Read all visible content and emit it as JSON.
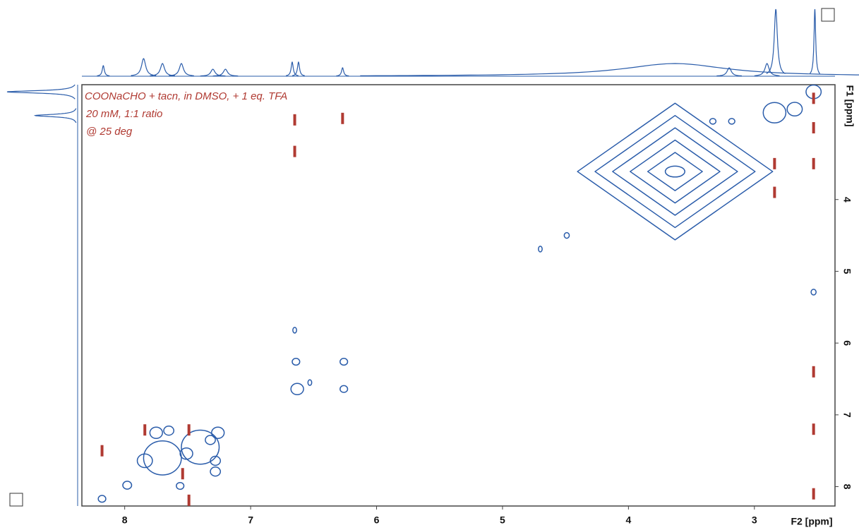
{
  "chart_data": {
    "type": "contour",
    "xlabel": "F2 [ppm]",
    "ylabel": "F1 [ppm]",
    "annotations": [
      "COONaCHO + tacn, in DMSO, + 1 eq. TFA",
      "20 mM, 1:1 ratio",
      "@ 25 deg"
    ],
    "xlim": [
      8.34,
      2.36
    ],
    "ylim": [
      2.4,
      8.27
    ],
    "xticks": [
      8,
      7,
      6,
      5,
      4,
      3
    ],
    "yticks": [
      4,
      5,
      6,
      7,
      8
    ],
    "positive": {
      "color": "#2a5caa",
      "x": [
        3.63,
        2.53,
        2.84,
        2.68,
        3.18,
        3.33,
        4.49,
        4.7,
        2.53,
        6.64,
        6.26,
        6.63,
        6.26,
        6.65,
        6.53,
        7.75,
        7.65,
        7.32,
        7.26,
        7.84,
        7.51,
        7.28,
        7.28,
        7.98,
        8.18,
        7.56,
        7.7,
        7.4
      ],
      "y": [
        3.61,
        2.5,
        2.79,
        2.74,
        2.91,
        2.91,
        4.5,
        4.69,
        5.29,
        6.26,
        6.26,
        6.64,
        6.64,
        5.82,
        6.55,
        7.25,
        7.22,
        7.35,
        7.25,
        7.64,
        7.54,
        7.64,
        7.79,
        7.98,
        8.17,
        7.99,
        7.6,
        7.45
      ],
      "widths": [
        1.55,
        0.12,
        0.18,
        0.12,
        0.05,
        0.05,
        0.04,
        0.03,
        0.04,
        0.06,
        0.06,
        0.1,
        0.06,
        0.03,
        0.03,
        0.1,
        0.08,
        0.08,
        0.1,
        0.12,
        0.1,
        0.08,
        0.08,
        0.07,
        0.06,
        0.06,
        0.3,
        0.3
      ]
    },
    "negative": {
      "color": "#b03a32",
      "x": [
        6.65,
        6.27,
        6.65,
        2.53,
        2.53,
        2.53,
        2.53,
        2.53,
        2.53,
        2.84,
        2.84,
        8.18,
        7.49,
        7.84,
        7.54,
        7.49
      ],
      "y": [
        2.89,
        2.87,
        3.33,
        2.59,
        3.0,
        3.5,
        6.4,
        7.2,
        8.1,
        3.5,
        3.9,
        7.5,
        7.21,
        7.21,
        7.82,
        8.19
      ],
      "widths": [
        0.02,
        0.02,
        0.02,
        0.02,
        0.02,
        0.02,
        0.02,
        0.02,
        0.02,
        0.02,
        0.02,
        0.03,
        0.03,
        0.03,
        0.03,
        0.02
      ]
    },
    "projection_f2": {
      "color": "#2a5caa",
      "x": [
        8.17,
        7.85,
        7.7,
        7.55,
        7.3,
        7.2,
        6.67,
        6.62,
        6.27,
        3.63,
        3.2,
        2.9,
        2.83,
        2.52
      ],
      "values": [
        15,
        25,
        18,
        18,
        10,
        10,
        20,
        20,
        12,
        18,
        12,
        18,
        95,
        95
      ],
      "widths": [
        0.01,
        0.02,
        0.02,
        0.02,
        0.02,
        0.02,
        0.01,
        0.01,
        0.01,
        0.5,
        0.02,
        0.02,
        0.015,
        0.008
      ]
    },
    "projection_f1": {
      "color": "#2a5caa",
      "y": [
        2.5,
        2.83
      ],
      "values": [
        100,
        60
      ],
      "widths": [
        0.02,
        0.02
      ]
    }
  }
}
